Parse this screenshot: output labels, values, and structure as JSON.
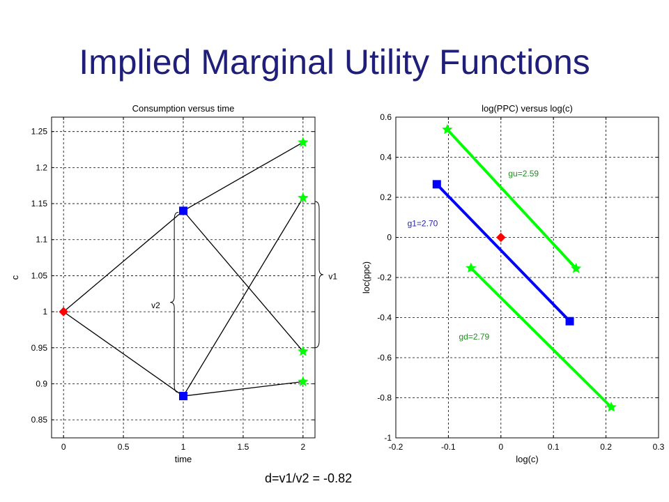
{
  "slide": {
    "title": "Implied Marginal Utility Functions",
    "formula": "d=v1/v2 = -0.82"
  },
  "colors": {
    "title": "#1f1f7a",
    "blue": "#0000ff",
    "green": "#00ff00",
    "red": "#ff0000",
    "green_text": "#228b22",
    "blue_text": "#2222aa",
    "grid": "#000000"
  },
  "chart_data": [
    {
      "type": "line",
      "title": "Consumption versus time",
      "xlabel": "time",
      "ylabel": "c",
      "xlim": [
        -0.1,
        2.1
      ],
      "ylim": [
        0.825,
        1.27
      ],
      "xticks": [
        0,
        0.5,
        1,
        1.5,
        2
      ],
      "xtick_labels": [
        "0",
        "0.5",
        "1",
        "1.5",
        "2"
      ],
      "yticks": [
        0.85,
        0.9,
        0.95,
        1,
        1.05,
        1.1,
        1.15,
        1.2,
        1.25
      ],
      "ytick_labels": [
        "0.85",
        "0.9",
        "0.95",
        "1",
        "1.05",
        "1.1",
        "1.15",
        "1.2",
        "1.25"
      ],
      "grid": true,
      "segments": [
        {
          "x": [
            0,
            1
          ],
          "y": [
            1.0,
            1.14
          ]
        },
        {
          "x": [
            0,
            1
          ],
          "y": [
            1.0,
            0.883
          ]
        },
        {
          "x": [
            1,
            2
          ],
          "y": [
            1.14,
            1.235
          ]
        },
        {
          "x": [
            1,
            2
          ],
          "y": [
            1.14,
            0.945
          ]
        },
        {
          "x": [
            1,
            2
          ],
          "y": [
            0.883,
            1.158
          ]
        },
        {
          "x": [
            1,
            2
          ],
          "y": [
            0.883,
            0.903
          ]
        }
      ],
      "points": [
        {
          "x": 0,
          "y": 1.0,
          "marker": "diamond",
          "color": "#ff0000"
        },
        {
          "x": 1,
          "y": 1.14,
          "marker": "square",
          "color": "#0000ff"
        },
        {
          "x": 1,
          "y": 0.883,
          "marker": "square",
          "color": "#0000ff"
        },
        {
          "x": 2,
          "y": 1.235,
          "marker": "star",
          "color": "#00ff00"
        },
        {
          "x": 2,
          "y": 1.158,
          "marker": "star",
          "color": "#00ff00"
        },
        {
          "x": 2,
          "y": 0.945,
          "marker": "star",
          "color": "#00ff00"
        },
        {
          "x": 2,
          "y": 0.903,
          "marker": "star",
          "color": "#00ff00"
        }
      ],
      "annotations": [
        {
          "text": "v1",
          "x": 2.25,
          "y": 1.045,
          "bracket": {
            "x": 2.1,
            "y": [
              0.95,
              1.153
            ],
            "side": "right"
          }
        },
        {
          "text": "v2",
          "x": 0.77,
          "y": 1.005,
          "bracket": {
            "x": 0.96,
            "y": [
              0.888,
              1.138
            ],
            "side": "left"
          }
        }
      ]
    },
    {
      "type": "line",
      "title": "log(PPC) versus log(c)",
      "xlabel": "log(c)",
      "ylabel": "loc(ppc)",
      "xlim": [
        -0.2,
        0.3
      ],
      "ylim": [
        -1,
        0.6
      ],
      "xticks": [
        -0.2,
        -0.1,
        0,
        0.1,
        0.2,
        0.3
      ],
      "xtick_labels": [
        "-0.2",
        "-0.1",
        "0",
        "0.1",
        "0.2",
        "0.3"
      ],
      "yticks": [
        -1,
        -0.8,
        -0.6,
        -0.4,
        -0.2,
        0,
        0.2,
        0.4,
        0.6
      ],
      "ytick_labels": [
        "-1",
        "-0.8",
        "-0.6",
        "-0.4",
        "-0.2",
        "0",
        "0.2",
        "0.4",
        "0.6"
      ],
      "grid": true,
      "series": [
        {
          "name": "gu=2.59",
          "color": "#00ff00",
          "marker": "star",
          "x": [
            -0.102,
            0.143
          ],
          "y": [
            0.538,
            -0.155
          ],
          "label_pos": {
            "x": 0.014,
            "y": 0.305
          }
        },
        {
          "name": "g1=2.70",
          "color": "#0000ff",
          "marker": "square",
          "x": [
            -0.122,
            0.131
          ],
          "y": [
            0.265,
            -0.418
          ],
          "label_pos": {
            "x": -0.178,
            "y": 0.055
          }
        },
        {
          "name": "gd=2.79",
          "color": "#00ff00",
          "marker": "star",
          "x": [
            -0.057,
            0.21
          ],
          "y": [
            -0.153,
            -0.847
          ],
          "label_pos": {
            "x": -0.08,
            "y": -0.51
          }
        }
      ],
      "points": [
        {
          "x": 0,
          "y": 0,
          "marker": "diamond",
          "color": "#ff0000"
        }
      ]
    }
  ]
}
